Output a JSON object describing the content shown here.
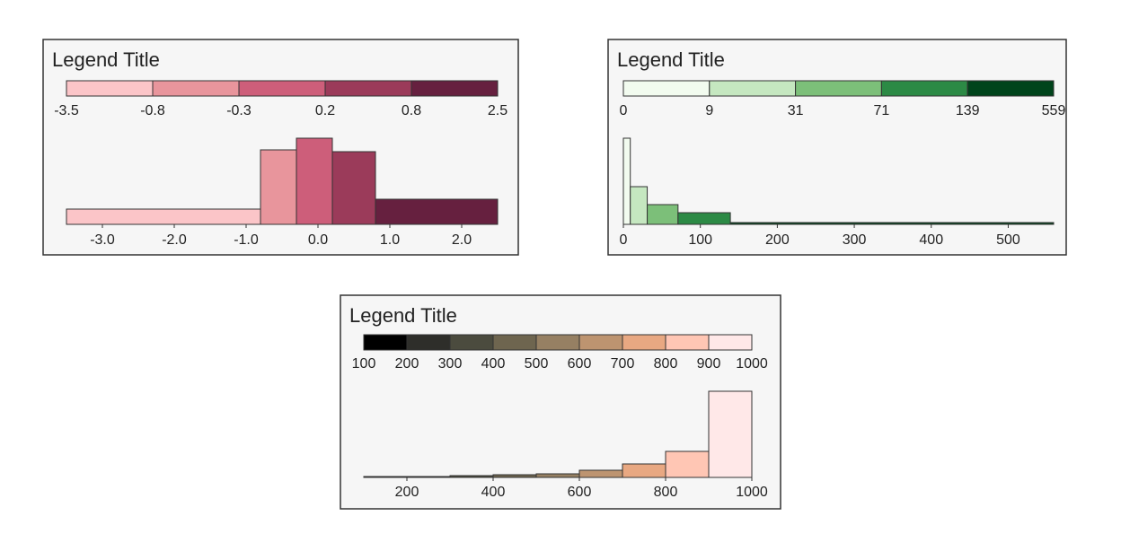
{
  "chart_data": [
    {
      "type": "histogram",
      "title": "Legend Title",
      "bins": [
        -3.5,
        -0.8,
        -0.3,
        0.2,
        0.8,
        2.5
      ],
      "values": [
        17,
        83,
        96,
        81,
        28
      ],
      "colors": [
        "#fbc5c8",
        "#e8959c",
        "#cd5e7a",
        "#9b3b5a",
        "#66203f"
      ],
      "xlim": [
        -3.5,
        2.5
      ],
      "xticks": [
        {
          "value": -3,
          "label": "-3.0"
        },
        {
          "value": -2,
          "label": "-2.0"
        },
        {
          "value": -1,
          "label": "-1.0"
        },
        {
          "value": 0,
          "label": "0.0"
        },
        {
          "value": 1,
          "label": "1.0"
        },
        {
          "value": 2,
          "label": "2.0"
        }
      ],
      "ylim": [
        0,
        96
      ]
    },
    {
      "type": "histogram",
      "title": "Legend Title",
      "bins": [
        0,
        9,
        31,
        71,
        139,
        559
      ],
      "values": [
        96,
        42,
        22,
        13,
        2
      ],
      "colors": [
        "#f2fbef",
        "#c5e7c0",
        "#7cbf79",
        "#2c8a45",
        "#00441b"
      ],
      "xlim": [
        0,
        559
      ],
      "xticks": [
        0,
        100,
        200,
        300,
        400,
        500
      ],
      "ylim": [
        0,
        96
      ]
    },
    {
      "type": "histogram",
      "title": "Legend Title",
      "bins": [
        100,
        200,
        300,
        400,
        500,
        600,
        700,
        800,
        900,
        1000
      ],
      "values": [
        1,
        1,
        2,
        3,
        4,
        8,
        15,
        29,
        96
      ],
      "colors": [
        "#000000",
        "#2e2e2a",
        "#4b4b3e",
        "#6e654f",
        "#968063",
        "#bd9470",
        "#e8a882",
        "#ffc6b4",
        "#ffe8e8"
      ],
      "xlim": [
        100,
        1000
      ],
      "xticks": [
        200,
        400,
        600,
        800,
        1000
      ],
      "ylim": [
        0,
        96
      ]
    }
  ]
}
